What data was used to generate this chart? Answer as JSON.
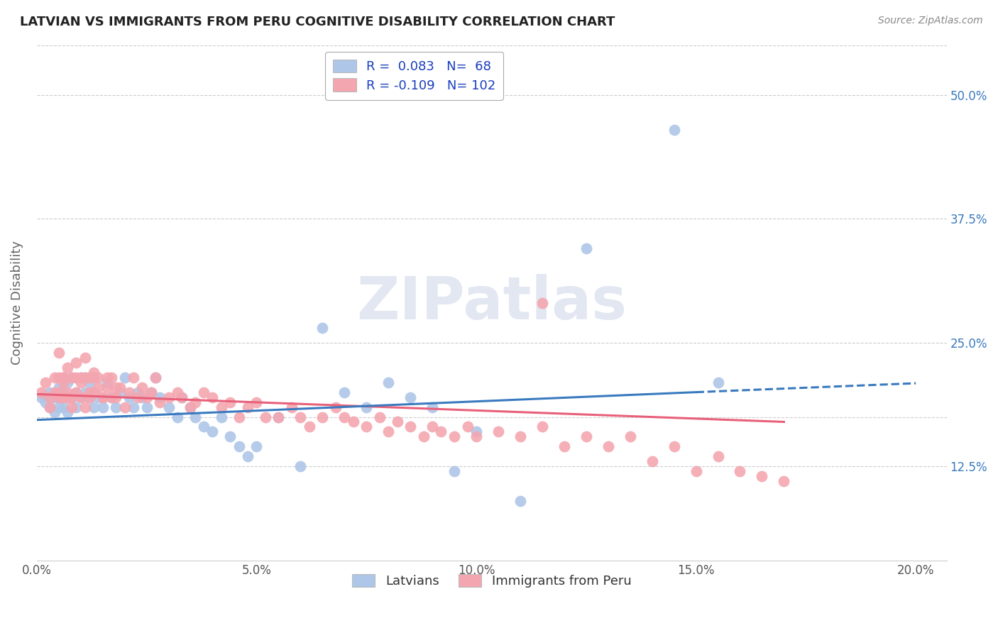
{
  "title": "LATVIAN VS IMMIGRANTS FROM PERU COGNITIVE DISABILITY CORRELATION CHART",
  "source": "Source: ZipAtlas.com",
  "ylabel": "Cognitive Disability",
  "ytick_vals": [
    0.125,
    0.175,
    0.25,
    0.375,
    0.5
  ],
  "ytick_labels": [
    "12.5%",
    "",
    "25.0%",
    "37.5%",
    "50.0%"
  ],
  "xtick_vals": [
    0.0,
    0.05,
    0.1,
    0.15,
    0.2
  ],
  "xtick_labels": [
    "0.0%",
    "5.0%",
    "10.0%",
    "15.0%",
    "20.0%"
  ],
  "xlim": [
    0.0,
    0.207
  ],
  "ylim": [
    0.03,
    0.55
  ],
  "latvian_color": "#aec6e8",
  "peru_color": "#f4a6b0",
  "latvian_line_color": "#3a7abf",
  "peru_line_color": "#e8607a",
  "legend_text_color": "#1a3ebf",
  "watermark": "ZIPatlas",
  "legend_r1_text": "R =  0.083   N=  68",
  "legend_r2_text": "R = -0.109   N= 102",
  "legend_r1_label": "Latvians",
  "legend_r2_label": "Immigrants from Peru",
  "latvian_line": {
    "x0": 0.0,
    "y0": 0.172,
    "x1": 0.15,
    "y1": 0.2,
    "dash_x1": 0.2,
    "dash_y1": 0.209
  },
  "peru_line": {
    "x0": 0.0,
    "y0": 0.198,
    "x1": 0.17,
    "y1": 0.17
  },
  "latvians_x": [
    0.001,
    0.002,
    0.003,
    0.003,
    0.004,
    0.004,
    0.005,
    0.005,
    0.005,
    0.006,
    0.006,
    0.006,
    0.007,
    0.007,
    0.007,
    0.008,
    0.008,
    0.009,
    0.009,
    0.01,
    0.01,
    0.011,
    0.011,
    0.012,
    0.012,
    0.013,
    0.013,
    0.014,
    0.015,
    0.016,
    0.017,
    0.018,
    0.019,
    0.02,
    0.021,
    0.022,
    0.023,
    0.024,
    0.025,
    0.026,
    0.027,
    0.028,
    0.03,
    0.032,
    0.033,
    0.035,
    0.036,
    0.038,
    0.04,
    0.042,
    0.044,
    0.046,
    0.048,
    0.05,
    0.055,
    0.06,
    0.065,
    0.07,
    0.075,
    0.08,
    0.085,
    0.09,
    0.095,
    0.1,
    0.11,
    0.125,
    0.145,
    0.155
  ],
  "latvians_y": [
    0.195,
    0.19,
    0.2,
    0.185,
    0.195,
    0.18,
    0.205,
    0.195,
    0.185,
    0.2,
    0.215,
    0.185,
    0.21,
    0.195,
    0.18,
    0.195,
    0.215,
    0.2,
    0.185,
    0.215,
    0.195,
    0.215,
    0.2,
    0.195,
    0.21,
    0.185,
    0.2,
    0.195,
    0.185,
    0.21,
    0.195,
    0.185,
    0.2,
    0.215,
    0.195,
    0.185,
    0.2,
    0.195,
    0.185,
    0.2,
    0.215,
    0.195,
    0.185,
    0.175,
    0.195,
    0.185,
    0.175,
    0.165,
    0.16,
    0.175,
    0.155,
    0.145,
    0.135,
    0.145,
    0.175,
    0.125,
    0.265,
    0.2,
    0.185,
    0.21,
    0.195,
    0.185,
    0.12,
    0.16,
    0.09,
    0.345,
    0.465,
    0.21
  ],
  "peru_x": [
    0.001,
    0.002,
    0.003,
    0.003,
    0.004,
    0.004,
    0.005,
    0.005,
    0.005,
    0.006,
    0.006,
    0.006,
    0.007,
    0.007,
    0.008,
    0.008,
    0.009,
    0.009,
    0.01,
    0.01,
    0.011,
    0.011,
    0.012,
    0.012,
    0.013,
    0.013,
    0.014,
    0.015,
    0.016,
    0.017,
    0.018,
    0.019,
    0.02,
    0.021,
    0.022,
    0.023,
    0.024,
    0.025,
    0.026,
    0.027,
    0.028,
    0.03,
    0.032,
    0.033,
    0.035,
    0.036,
    0.038,
    0.04,
    0.042,
    0.044,
    0.046,
    0.048,
    0.05,
    0.052,
    0.055,
    0.058,
    0.06,
    0.062,
    0.065,
    0.068,
    0.07,
    0.072,
    0.075,
    0.078,
    0.08,
    0.082,
    0.085,
    0.088,
    0.09,
    0.092,
    0.095,
    0.098,
    0.1,
    0.105,
    0.11,
    0.115,
    0.12,
    0.125,
    0.13,
    0.135,
    0.14,
    0.145,
    0.15,
    0.155,
    0.16,
    0.165,
    0.17,
    0.005,
    0.006,
    0.007,
    0.008,
    0.009,
    0.01,
    0.011,
    0.012,
    0.013,
    0.014,
    0.015,
    0.016,
    0.017,
    0.018,
    0.115
  ],
  "peru_y": [
    0.2,
    0.21,
    0.195,
    0.185,
    0.215,
    0.2,
    0.195,
    0.215,
    0.2,
    0.21,
    0.195,
    0.215,
    0.2,
    0.195,
    0.215,
    0.185,
    0.2,
    0.215,
    0.195,
    0.21,
    0.185,
    0.215,
    0.2,
    0.195,
    0.215,
    0.2,
    0.215,
    0.195,
    0.205,
    0.215,
    0.195,
    0.205,
    0.185,
    0.2,
    0.215,
    0.195,
    0.205,
    0.195,
    0.2,
    0.215,
    0.19,
    0.195,
    0.2,
    0.195,
    0.185,
    0.19,
    0.2,
    0.195,
    0.185,
    0.19,
    0.175,
    0.185,
    0.19,
    0.175,
    0.175,
    0.185,
    0.175,
    0.165,
    0.175,
    0.185,
    0.175,
    0.17,
    0.165,
    0.175,
    0.16,
    0.17,
    0.165,
    0.155,
    0.165,
    0.16,
    0.155,
    0.165,
    0.155,
    0.16,
    0.155,
    0.165,
    0.145,
    0.155,
    0.145,
    0.155,
    0.13,
    0.145,
    0.12,
    0.135,
    0.12,
    0.115,
    0.11,
    0.24,
    0.215,
    0.225,
    0.195,
    0.23,
    0.215,
    0.235,
    0.215,
    0.22,
    0.205,
    0.195,
    0.215,
    0.195,
    0.205,
    0.29
  ]
}
